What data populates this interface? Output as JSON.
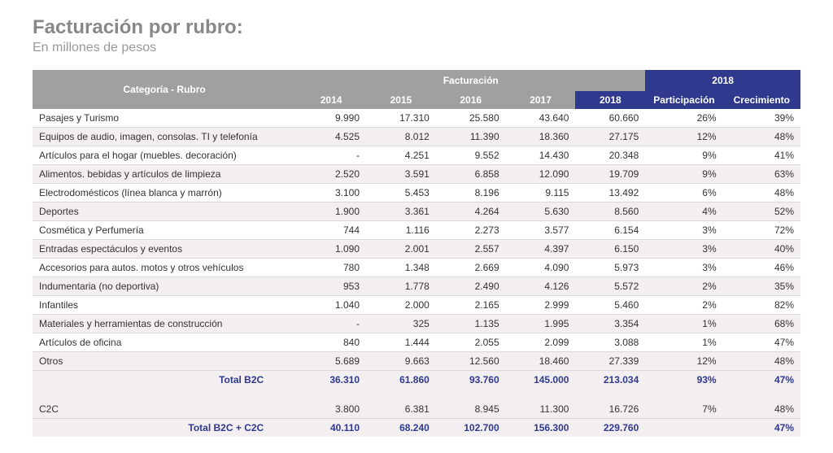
{
  "title": "Facturación por rubro:",
  "subtitle": "En millones de pesos",
  "headers": {
    "category": "Categoría - Rubro",
    "facturacion": "Facturación",
    "y2014": "2014",
    "y2015": "2015",
    "y2016": "2016",
    "y2017": "2017",
    "y2018": "2018",
    "grp2018": "2018",
    "participacion": "Participación",
    "crecimiento": "Crecimiento"
  },
  "rows": [
    {
      "cat": "Pasajes y Turismo",
      "v": [
        "9.990",
        "17.310",
        "25.580",
        "43.640",
        "60.660",
        "26%",
        "39%"
      ]
    },
    {
      "cat": "Equipos de audio, imagen, consolas. TI y telefonía",
      "v": [
        "4.525",
        "8.012",
        "11.390",
        "18.360",
        "27.175",
        "12%",
        "48%"
      ]
    },
    {
      "cat": "Artículos para el hogar (muebles. decoración)",
      "v": [
        "-",
        "4.251",
        "9.552",
        "14.430",
        "20.348",
        "9%",
        "41%"
      ]
    },
    {
      "cat": "Alimentos. bebidas y artículos de limpieza",
      "v": [
        "2.520",
        "3.591",
        "6.858",
        "12.090",
        "19.709",
        "9%",
        "63%"
      ]
    },
    {
      "cat": "Electrodomésticos (línea blanca y marrón)",
      "v": [
        "3.100",
        "5.453",
        "8.196",
        "9.115",
        "13.492",
        "6%",
        "48%"
      ]
    },
    {
      "cat": "Deportes",
      "v": [
        "1.900",
        "3.361",
        "4.264",
        "5.630",
        "8.560",
        "4%",
        "52%"
      ]
    },
    {
      "cat": "Cosmética y Perfumería",
      "v": [
        "744",
        "1.116",
        "2.273",
        "3.577",
        "6.154",
        "3%",
        "72%"
      ]
    },
    {
      "cat": "Entradas espectáculos y eventos",
      "v": [
        "1.090",
        "2.001",
        "2.557",
        "4.397",
        "6.150",
        "3%",
        "40%"
      ]
    },
    {
      "cat": "Accesorios para autos. motos y otros vehículos",
      "v": [
        "780",
        "1.348",
        "2.669",
        "4.090",
        "5.973",
        "3%",
        "46%"
      ]
    },
    {
      "cat": "Indumentaria  (no deportiva)",
      "v": [
        "953",
        "1.778",
        "2.490",
        "4.126",
        "5.572",
        "2%",
        "35%"
      ]
    },
    {
      "cat": "Infantiles",
      "v": [
        "1.040",
        "2.000",
        "2.165",
        "2.999",
        "5.460",
        "2%",
        "82%"
      ]
    },
    {
      "cat": "Materiales y herramientas de construcción",
      "v": [
        "-",
        "325",
        "1.135",
        "1.995",
        "3.354",
        "1%",
        "68%"
      ]
    },
    {
      "cat": "Artículos de oficina",
      "v": [
        "840",
        "1.444",
        "2.055",
        "2.099",
        "3.088",
        "1%",
        "47%"
      ]
    },
    {
      "cat": "Otros",
      "v": [
        "5.689",
        "9.663",
        "12.560",
        "18.460",
        "27.339",
        "12%",
        "48%"
      ]
    }
  ],
  "total_b2c": {
    "label": "Total B2C",
    "v": [
      "36.310",
      "61.860",
      "93.760",
      "145.000",
      "213.034",
      "93%",
      "47%"
    ]
  },
  "c2c": {
    "cat": "C2C",
    "v": [
      "3.800",
      "6.381",
      "8.945",
      "11.300",
      "16.726",
      "7%",
      "48%"
    ]
  },
  "total_all": {
    "label": "Total B2C + C2C",
    "v": [
      "40.110",
      "68.240",
      "102.700",
      "156.300",
      "229.760",
      "",
      "47%"
    ]
  },
  "colors": {
    "header_grey": "#a0a0a0",
    "header_blue": "#2f3a8f",
    "zebra": "#f3eef0",
    "title_grey": "#888888",
    "border": "#d9d9d9",
    "total_text": "#2f3a8f"
  }
}
